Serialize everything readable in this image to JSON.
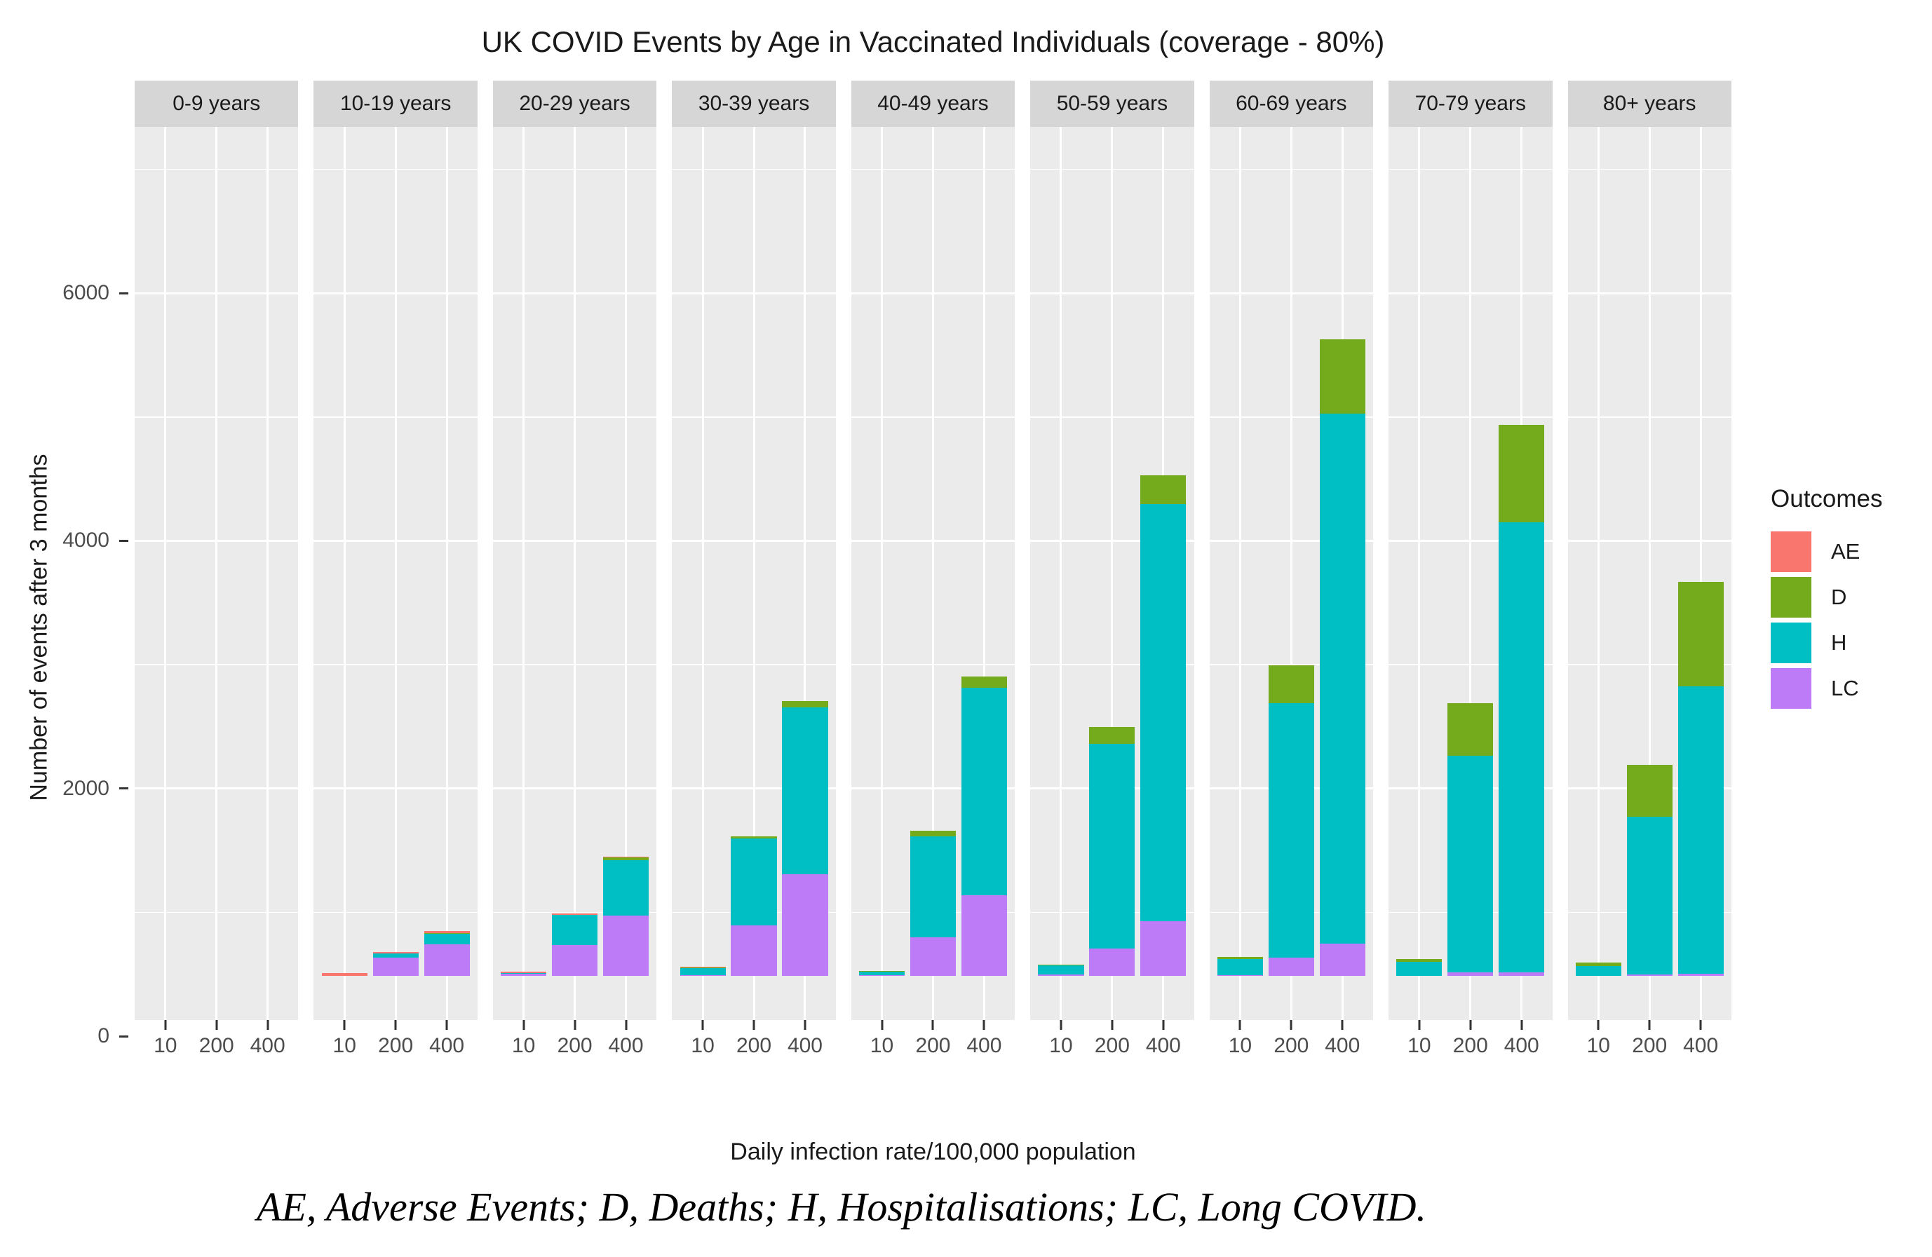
{
  "title": "UK COVID Events by Age in Vaccinated Individuals (coverage - 80%)",
  "y_axis": {
    "label": "Number of events after 3 months",
    "tick_labels": [
      "0",
      "2000",
      "4000",
      "6000"
    ],
    "tick_values": [
      0,
      2000,
      4000,
      6000
    ],
    "minor_tick_values": [
      1000,
      3000,
      5000,
      7000
    ]
  },
  "x_axis": {
    "label": "Daily infection rate/100,000 population",
    "tick_labels": [
      "10",
      "200",
      "400"
    ]
  },
  "legend": {
    "title": "Outcomes",
    "entries": [
      {
        "label": "AE",
        "color": "#F8766D"
      },
      {
        "label": "D",
        "color": "#74AB1C"
      },
      {
        "label": "H",
        "color": "#00BFC4"
      },
      {
        "label": "LC",
        "color": "#BE7BF8"
      }
    ]
  },
  "caption": "AE, Adverse Events; D, Deaths; H, Hospitalisations; LC, Long COVID.",
  "colors": {
    "panel_background": "#EBEBEB",
    "strip_background": "#D6D6D6",
    "gridline": "#FFFFFF"
  },
  "chart_data": {
    "type": "bar",
    "stacked": true,
    "stack_order_bottom_to_top": [
      "LC",
      "H",
      "D",
      "AE"
    ],
    "title": "UK COVID Events by Age in Vaccinated Individuals (coverage - 80%)",
    "xlabel": "Daily infection rate/100,000 population",
    "ylabel": "Number of events after 3 months",
    "x": [
      "10",
      "200",
      "400"
    ],
    "ylim": [
      0,
      7300
    ],
    "yticks": [
      0,
      2000,
      4000,
      6000
    ],
    "yticks_minor": [
      1000,
      3000,
      5000,
      7000
    ],
    "grid": true,
    "legend_position": "right",
    "facets": [
      {
        "label": "0-9 years",
        "series": {
          "AE": [
            0,
            0,
            0
          ],
          "D": [
            0,
            0,
            0
          ],
          "H": [
            0,
            0,
            0
          ],
          "LC": [
            0,
            0,
            0
          ]
        }
      },
      {
        "label": "10-19 years",
        "series": {
          "AE": [
            25,
            15,
            20
          ],
          "D": [
            0,
            0,
            5
          ],
          "H": [
            0,
            35,
            85
          ],
          "LC": [
            0,
            145,
            255
          ]
        }
      },
      {
        "label": "20-29 years",
        "series": {
          "AE": [
            10,
            10,
            10
          ],
          "D": [
            0,
            5,
            20
          ],
          "H": [
            10,
            240,
            450
          ],
          "LC": [
            15,
            250,
            485
          ]
        }
      },
      {
        "label": "30-39 years",
        "series": {
          "AE": [
            5,
            0,
            0
          ],
          "D": [
            10,
            15,
            50
          ],
          "H": [
            55,
            700,
            1350
          ],
          "LC": [
            5,
            410,
            820
          ]
        }
      },
      {
        "label": "40-49 years",
        "series": {
          "AE": [
            0,
            0,
            0
          ],
          "D": [
            5,
            45,
            90
          ],
          "H": [
            30,
            815,
            1675
          ],
          "LC": [
            5,
            310,
            650
          ]
        }
      },
      {
        "label": "50-59 years",
        "series": {
          "AE": [
            0,
            0,
            0
          ],
          "D": [
            5,
            135,
            230
          ],
          "H": [
            75,
            1655,
            3370
          ],
          "LC": [
            10,
            220,
            440
          ]
        }
      },
      {
        "label": "60-69 years",
        "series": {
          "AE": [
            0,
            0,
            0
          ],
          "D": [
            20,
            310,
            600
          ],
          "H": [
            130,
            2050,
            4280
          ],
          "LC": [
            5,
            150,
            260
          ]
        }
      },
      {
        "label": "70-79 years",
        "series": {
          "AE": [
            0,
            0,
            0
          ],
          "D": [
            20,
            425,
            785
          ],
          "H": [
            115,
            1745,
            3635
          ],
          "LC": [
            0,
            30,
            30
          ]
        }
      },
      {
        "label": "80+ years",
        "series": {
          "AE": [
            0,
            0,
            0
          ],
          "D": [
            25,
            420,
            840
          ],
          "H": [
            80,
            1275,
            2325
          ],
          "LC": [
            0,
            10,
            15
          ]
        }
      }
    ]
  }
}
